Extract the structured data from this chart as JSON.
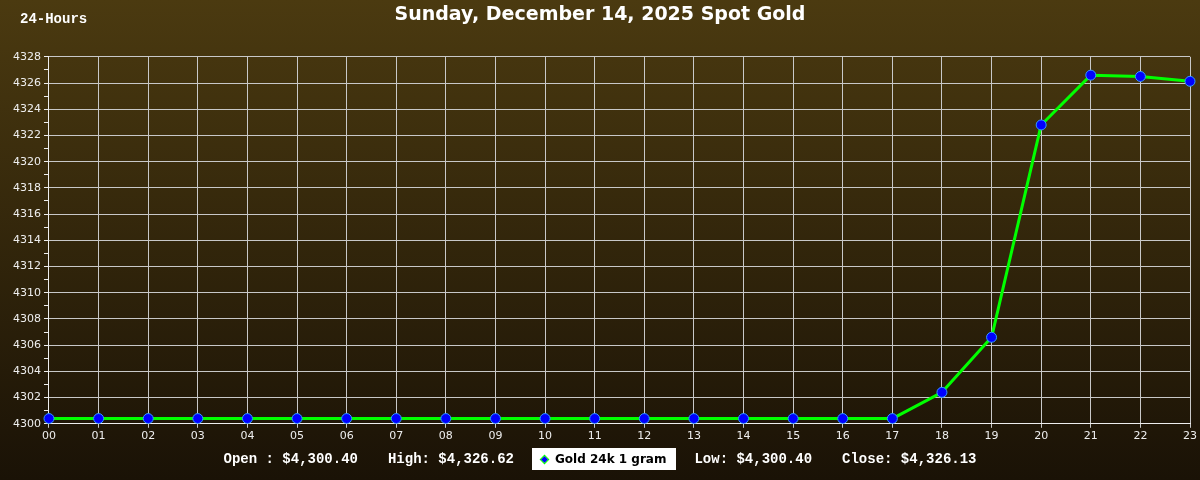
{
  "chart_data": {
    "type": "line",
    "title": "Sunday, December 14, 2025 Spot Gold",
    "subtitle": "24-Hours",
    "categories": [
      "00",
      "01",
      "02",
      "03",
      "04",
      "05",
      "06",
      "07",
      "08",
      "09",
      "10",
      "11",
      "12",
      "13",
      "14",
      "15",
      "16",
      "17",
      "18",
      "19",
      "20",
      "21",
      "22",
      "23"
    ],
    "series": [
      {
        "name": "Gold 24k 1 gram",
        "color": "#00ff00",
        "values": [
          4300.4,
          4300.4,
          4300.4,
          4300.4,
          4300.4,
          4300.4,
          4300.4,
          4300.4,
          4300.4,
          4300.4,
          4300.4,
          4300.4,
          4300.4,
          4300.4,
          4300.4,
          4300.4,
          4300.4,
          4300.4,
          4302.4,
          4306.6,
          4322.8,
          4326.6,
          4326.5,
          4326.13
        ]
      }
    ],
    "ylim": [
      4300,
      4328
    ],
    "yticks": [
      4300,
      {
        "value": 4301,
        "label": null
      },
      4302,
      {
        "value": 4303,
        "label": null
      },
      4304,
      {
        "value": 4305,
        "label": null
      },
      4306,
      {
        "value": 4307,
        "label": null
      },
      4308,
      {
        "value": 4309,
        "label": null
      },
      4310,
      {
        "value": 4311,
        "label": null
      },
      4312,
      {
        "value": 4313,
        "label": null
      },
      4314,
      {
        "value": 4315,
        "label": null
      },
      4316,
      {
        "value": 4317,
        "label": null
      },
      4318,
      {
        "value": 4319,
        "label": null
      },
      4320,
      {
        "value": 4321,
        "label": null
      },
      4322,
      {
        "value": 4323,
        "label": null
      },
      4324,
      {
        "value": 4325,
        "label": null
      },
      4326,
      {
        "value": 4327,
        "label": null
      },
      4328
    ],
    "grid": true,
    "legend": "bottom",
    "marker": "circle",
    "line_style": "solid",
    "annotations": [
      "Open : $4,300.40",
      "High: $4,326.62",
      "Low: $4,300.40",
      "Close: $4,326.13"
    ]
  }
}
